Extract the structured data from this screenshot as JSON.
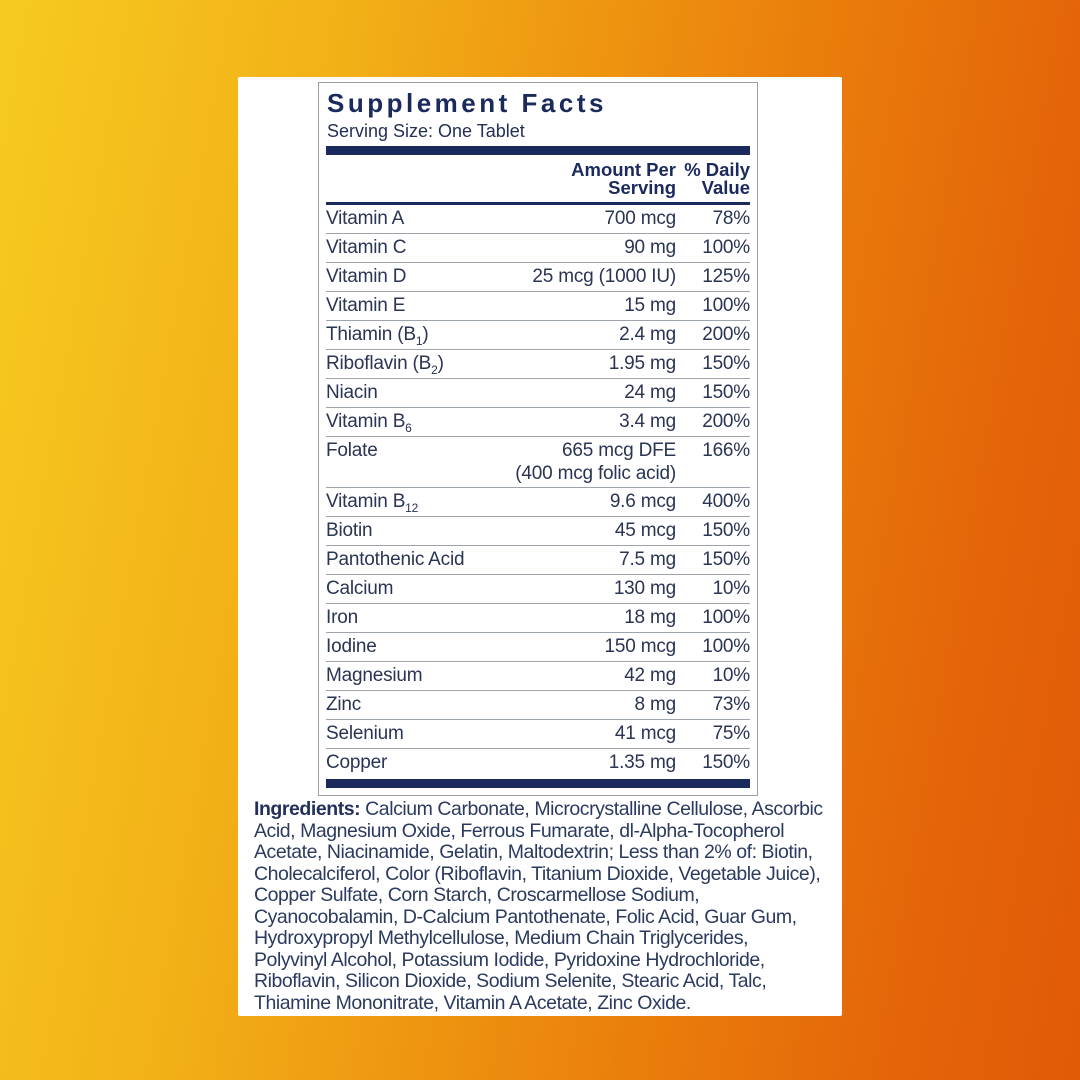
{
  "colors": {
    "accent_navy": "#1b2a5c",
    "row_text": "#2a3453",
    "separator_gray": "#9da4ac",
    "card_background": "#ffffff",
    "background_gradient": [
      "#f6cb20",
      "#ee9410",
      "#e15a07"
    ]
  },
  "panel": {
    "title": "Supplement Facts",
    "serving_size": "Serving Size: One Tablet",
    "columns": {
      "amount_line1": "Amount Per",
      "amount_line2": "Serving",
      "dv_line1": "% Daily",
      "dv_line2": "Value"
    }
  },
  "nutrients": [
    {
      "pre": "Vitamin A",
      "sub": "",
      "post": "",
      "amount": "700 mcg",
      "amount2": "",
      "dv": "78%"
    },
    {
      "pre": "Vitamin C",
      "sub": "",
      "post": "",
      "amount": "90 mg",
      "amount2": "",
      "dv": "100%"
    },
    {
      "pre": "Vitamin D",
      "sub": "",
      "post": "",
      "amount": "25 mcg (1000 IU)",
      "amount2": "",
      "dv": "125%"
    },
    {
      "pre": "Vitamin E",
      "sub": "",
      "post": "",
      "amount": "15 mg",
      "amount2": "",
      "dv": "100%"
    },
    {
      "pre": "Thiamin (B",
      "sub": "1",
      "post": ")",
      "amount": "2.4 mg",
      "amount2": "",
      "dv": "200%"
    },
    {
      "pre": "Riboflavin (B",
      "sub": "2",
      "post": ")",
      "amount": "1.95 mg",
      "amount2": "",
      "dv": "150%"
    },
    {
      "pre": "Niacin",
      "sub": "",
      "post": "",
      "amount": "24 mg",
      "amount2": "",
      "dv": "150%"
    },
    {
      "pre": "Vitamin B",
      "sub": "6",
      "post": "",
      "amount": "3.4 mg",
      "amount2": "",
      "dv": "200%"
    },
    {
      "pre": "Folate",
      "sub": "",
      "post": "",
      "amount": "665 mcg DFE",
      "amount2": "(400 mcg folic acid)",
      "dv": "166%"
    },
    {
      "pre": "Vitamin B",
      "sub": "12",
      "post": "",
      "amount": "9.6 mcg",
      "amount2": "",
      "dv": "400%"
    },
    {
      "pre": "Biotin",
      "sub": "",
      "post": "",
      "amount": "45 mcg",
      "amount2": "",
      "dv": "150%"
    },
    {
      "pre": "Pantothenic Acid",
      "sub": "",
      "post": "",
      "amount": "7.5 mg",
      "amount2": "",
      "dv": "150%"
    },
    {
      "pre": "Calcium",
      "sub": "",
      "post": "",
      "amount": "130 mg",
      "amount2": "",
      "dv": "10%"
    },
    {
      "pre": "Iron",
      "sub": "",
      "post": "",
      "amount": "18 mg",
      "amount2": "",
      "dv": "100%"
    },
    {
      "pre": "Iodine",
      "sub": "",
      "post": "",
      "amount": "150 mcg",
      "amount2": "",
      "dv": "100%"
    },
    {
      "pre": "Magnesium",
      "sub": "",
      "post": "",
      "amount": "42 mg",
      "amount2": "",
      "dv": "10%"
    },
    {
      "pre": "Zinc",
      "sub": "",
      "post": "",
      "amount": "8 mg",
      "amount2": "",
      "dv": "73%"
    },
    {
      "pre": "Selenium",
      "sub": "",
      "post": "",
      "amount": "41 mcg",
      "amount2": "",
      "dv": "75%"
    },
    {
      "pre": "Copper",
      "sub": "",
      "post": "",
      "amount": "1.35 mg",
      "amount2": "",
      "dv": "150%"
    }
  ],
  "ingredients": {
    "label": "Ingredients:",
    "text": " Calcium Carbonate, Microcrystalline Cellulose, Ascorbic Acid, Magnesium Oxide, Ferrous Fumarate, dl-Alpha-Tocopherol Acetate, Niacinamide, Gelatin, Maltodextrin; Less than 2% of: Biotin, Cholecalciferol, Color (Riboflavin, Titanium Dioxide, Vegetable Juice), Copper Sulfate, Corn Starch, Croscarmellose Sodium, Cyanocobalamin, D-Calcium Pantothenate, Folic Acid, Guar Gum, Hydroxypropyl Methylcellulose, Medium Chain Triglycerides, Polyvinyl Alcohol, Potassium Iodide, Pyridoxine Hydrochloride, Riboflavin, Silicon Dioxide, Sodium Selenite, Stearic Acid, Talc, Thiamine Mononitrate, Vitamin A Acetate, Zinc Oxide."
  }
}
